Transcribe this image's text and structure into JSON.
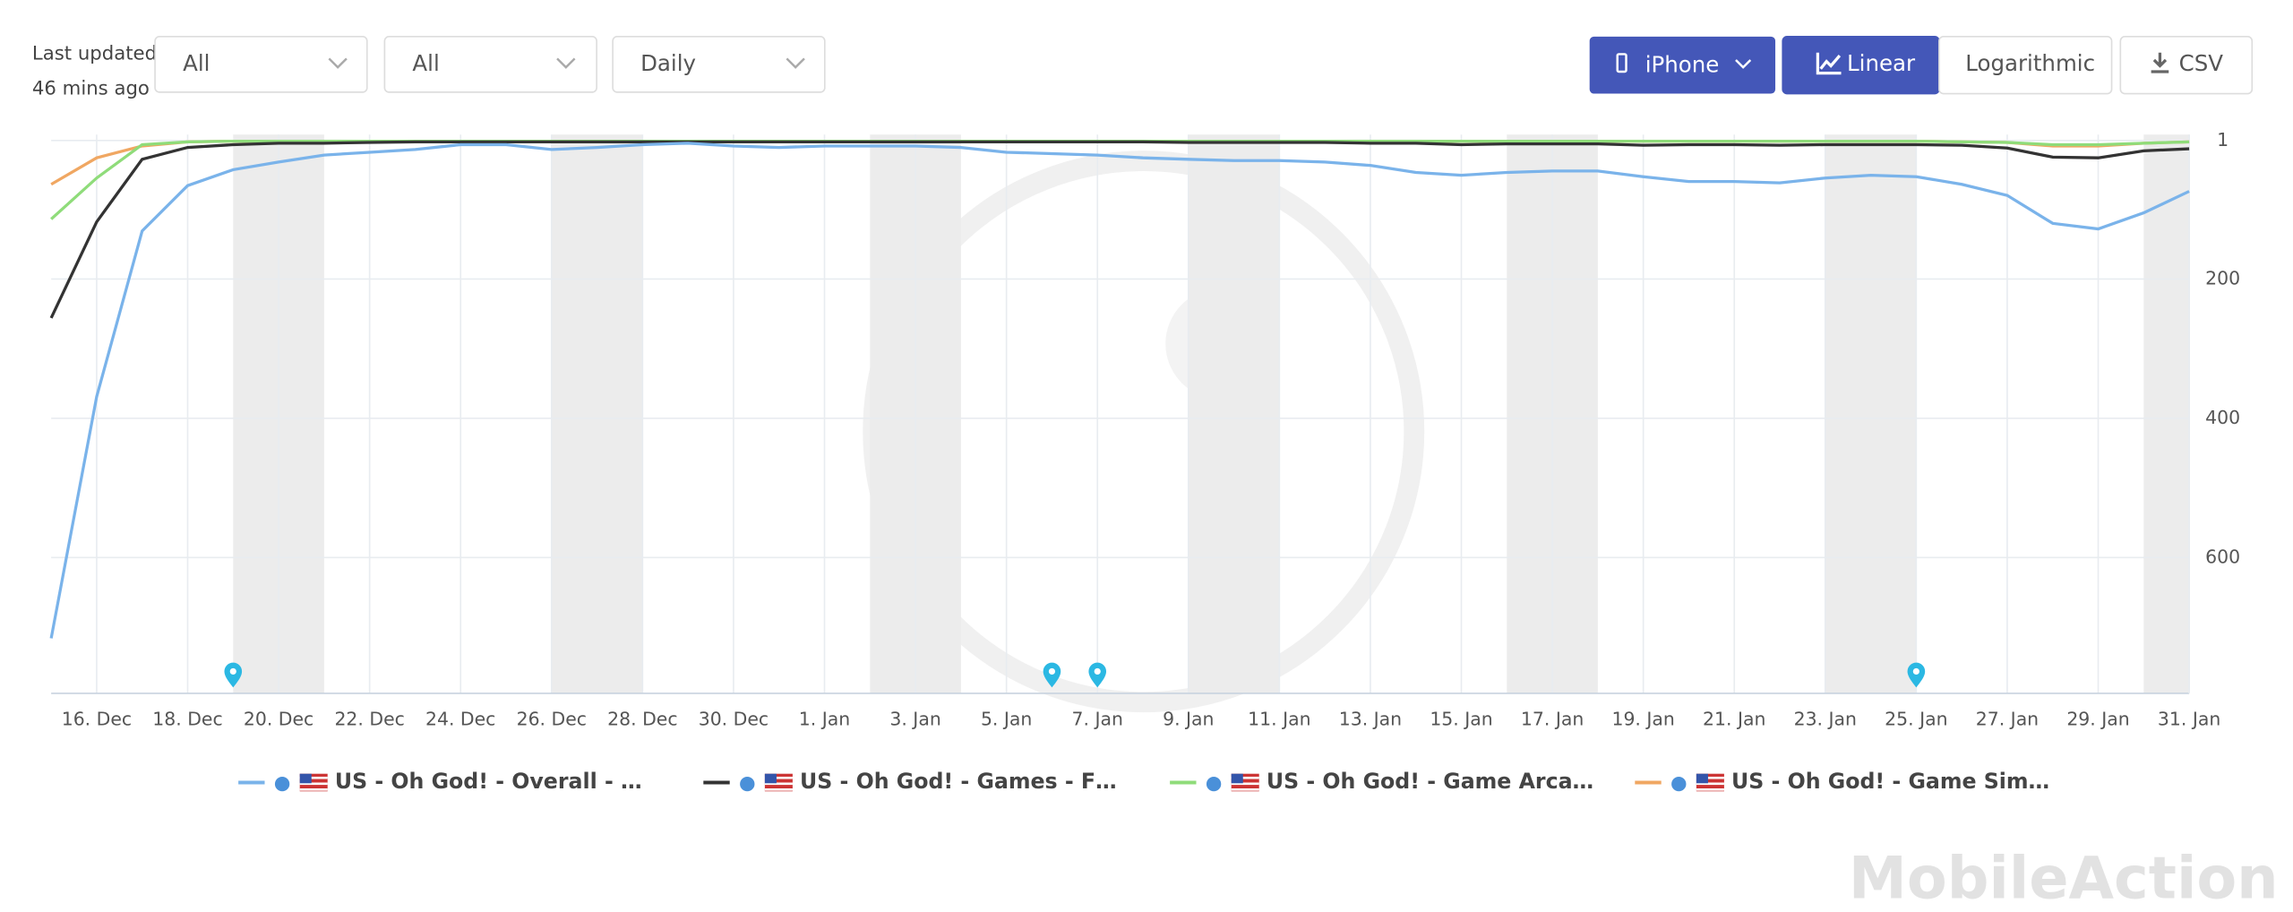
{
  "header": {
    "last_updated": "Last updated",
    "updated_ago": "46 mins ago",
    "filters": [
      "All",
      "All",
      "Daily"
    ],
    "device": "iPhone",
    "scale_options": [
      "Linear",
      "Logarithmic"
    ],
    "export": "CSV"
  },
  "chart_data": {
    "type": "line",
    "log_scale": false,
    "y_inverted": true,
    "grid": true,
    "categories": [
      null,
      "16. Dec",
      null,
      "18. Dec",
      null,
      "20. Dec",
      null,
      "22. Dec",
      null,
      "24. Dec",
      null,
      "26. Dec",
      null,
      "28. Dec",
      null,
      "30. Dec",
      null,
      "1. Jan",
      null,
      "3. Jan",
      null,
      "5. Jan",
      null,
      "7. Jan",
      null,
      "9. Jan",
      null,
      "11. Jan",
      null,
      "13. Jan",
      null,
      "15. Jan",
      null,
      "17. Jan",
      null,
      "19. Jan",
      null,
      "21. Jan",
      null,
      "23. Jan",
      null,
      "25. Jan",
      null,
      "27. Jan",
      null,
      "29. Jan",
      null,
      "31. Jan"
    ],
    "ylim": [
      1,
      795
    ],
    "yticks": [
      1,
      200,
      400,
      600
    ],
    "series": [
      {
        "name": "US - Oh God! - Overall - …",
        "color": "#7ab3ea",
        "values": [
          716,
          369,
          131,
          66,
          43,
          32,
          22,
          18,
          14,
          7,
          7,
          14,
          11,
          7,
          5,
          9,
          11,
          9,
          9,
          9,
          11,
          18,
          20,
          22,
          26,
          28,
          30,
          30,
          32,
          37,
          47,
          51,
          47,
          45,
          45,
          53,
          60,
          60,
          62,
          55,
          51,
          53,
          64,
          80,
          120,
          128,
          105,
          74
        ]
      },
      {
        "name": "US - Oh God! - Games - F…",
        "color": "#333333",
        "values": [
          256,
          118,
          28,
          11,
          7,
          5,
          5,
          4,
          3,
          3,
          3,
          3,
          3,
          3,
          3,
          3,
          3,
          3,
          3,
          3,
          3,
          3,
          3,
          3,
          3,
          4,
          4,
          4,
          4,
          5,
          5,
          7,
          6,
          6,
          6,
          8,
          7,
          7,
          8,
          7,
          7,
          7,
          8,
          12,
          25,
          26,
          16,
          13
        ]
      },
      {
        "name": "US - Oh God! - Game Arca…",
        "color": "#8fdc7a",
        "values": [
          114,
          55,
          7,
          3,
          2,
          2,
          2,
          2,
          2,
          2,
          2,
          2,
          2,
          2,
          2,
          2,
          2,
          2,
          2,
          2,
          2,
          2,
          2,
          2,
          2,
          2,
          2,
          2,
          2,
          2,
          2,
          2,
          2,
          2,
          2,
          2,
          2,
          2,
          2,
          2,
          2,
          2,
          3,
          4,
          7,
          7,
          5,
          3
        ]
      },
      {
        "name": "US - Oh God! - Game Sim…",
        "color": "#f0a762",
        "values": [
          64,
          26,
          9,
          3,
          2,
          2,
          2,
          2,
          2,
          2,
          2,
          2,
          2,
          2,
          2,
          2,
          2,
          2,
          2,
          2,
          2,
          2,
          2,
          2,
          2,
          2,
          2,
          2,
          2,
          2,
          2,
          2,
          2,
          2,
          2,
          2,
          2,
          2,
          2,
          2,
          2,
          2,
          3,
          4,
          9,
          9,
          5,
          3
        ]
      }
    ]
  },
  "footer": {
    "brand": "MobileAction"
  }
}
